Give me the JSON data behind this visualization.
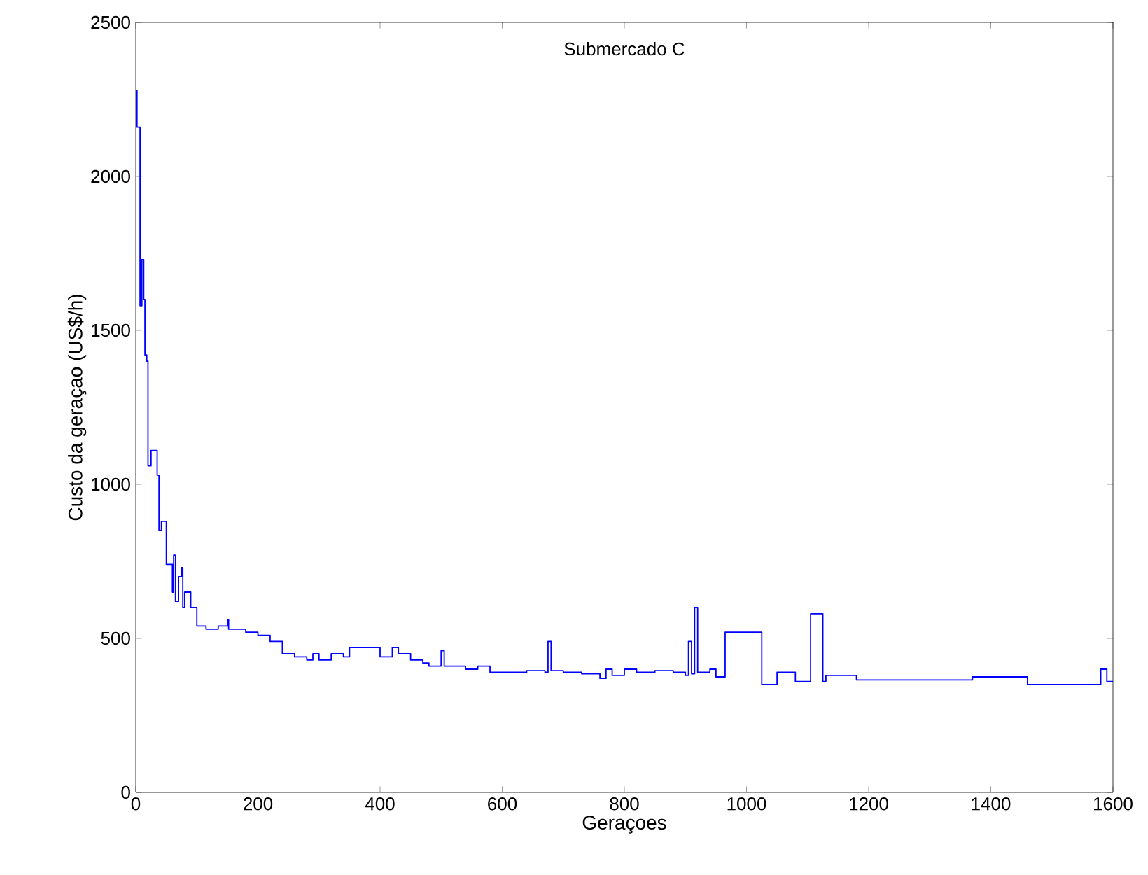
{
  "chart_data": {
    "type": "step",
    "title": "Submercado C",
    "xlabel": "Geraçoes",
    "ylabel": "Custo da geraçao  (US$/h)",
    "x": [
      0,
      2,
      7,
      10,
      13,
      15,
      18,
      20,
      25,
      35,
      38,
      42,
      50,
      60,
      62,
      65,
      70,
      75,
      77,
      80,
      90,
      100,
      115,
      135,
      150,
      152,
      180,
      200,
      220,
      240,
      260,
      280,
      290,
      300,
      320,
      340,
      350,
      380,
      400,
      420,
      430,
      450,
      470,
      480,
      500,
      505,
      540,
      560,
      580,
      620,
      640,
      670,
      675,
      680,
      700,
      730,
      760,
      770,
      780,
      800,
      820,
      850,
      880,
      900,
      905,
      910,
      915,
      920,
      940,
      950,
      965,
      1025,
      1050,
      1080,
      1105,
      1125,
      1130,
      1180,
      1370,
      1460,
      1580,
      1590,
      1600
    ],
    "values": [
      2280,
      2160,
      1580,
      1730,
      1600,
      1420,
      1400,
      1060,
      1110,
      1030,
      850,
      880,
      740,
      650,
      770,
      620,
      700,
      730,
      600,
      650,
      600,
      540,
      530,
      540,
      560,
      530,
      520,
      510,
      490,
      450,
      440,
      430,
      450,
      430,
      450,
      440,
      470,
      470,
      440,
      470,
      450,
      430,
      420,
      410,
      460,
      410,
      400,
      410,
      390,
      390,
      395,
      390,
      490,
      395,
      390,
      385,
      370,
      400,
      380,
      400,
      390,
      395,
      390,
      380,
      490,
      385,
      600,
      390,
      400,
      375,
      520,
      350,
      390,
      360,
      580,
      360,
      380,
      365,
      375,
      350,
      400,
      360,
      360
    ],
    "color": "#0000ff",
    "xlim": [
      0,
      1600
    ],
    "ylim": [
      0,
      2500
    ],
    "xticks": [
      0,
      200,
      400,
      600,
      800,
      1000,
      1200,
      1400,
      1600
    ],
    "yticks": [
      0,
      500,
      1000,
      1500,
      2000,
      2500
    ],
    "grid": false
  }
}
